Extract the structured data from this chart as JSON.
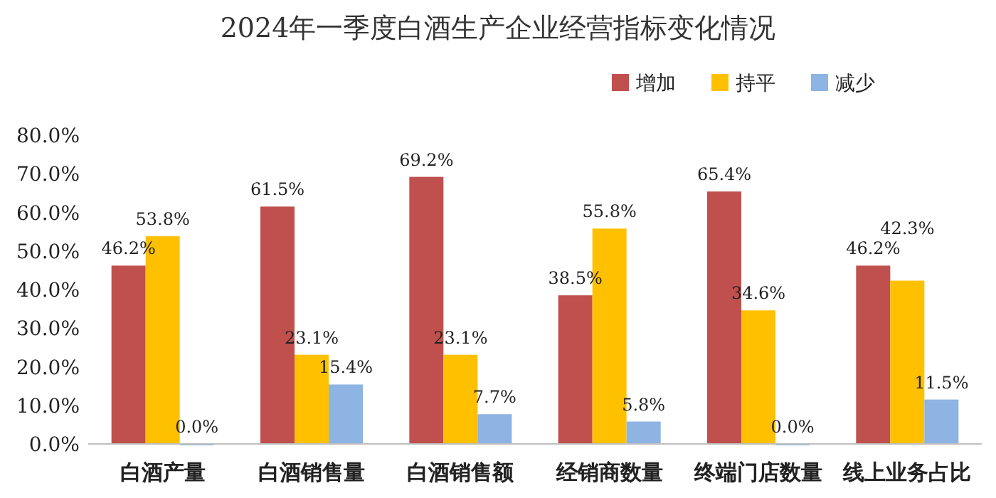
{
  "chart_data": {
    "type": "bar",
    "title": "2024年一季度白酒生产企业经营指标变化情况",
    "categories": [
      "白酒产量",
      "白酒销售量",
      "白酒销售额",
      "经销商数量",
      "终端门店数量",
      "线上业务占比"
    ],
    "series": [
      {
        "name": "增加",
        "color": "#c0504d",
        "values": [
          46.2,
          61.5,
          69.2,
          38.5,
          65.4,
          46.2
        ],
        "value_labels": [
          "46.2%",
          "61.5%",
          "69.2%",
          "38.5%",
          "65.4%",
          "46.2%"
        ]
      },
      {
        "name": "持平",
        "color": "#ffc000",
        "values": [
          53.8,
          23.1,
          23.1,
          55.8,
          34.6,
          42.3
        ],
        "value_labels": [
          "53.8%",
          "23.1%",
          "23.1%",
          "55.8%",
          "34.6%",
          "42.3%"
        ]
      },
      {
        "name": "减少",
        "color": "#8db4e2",
        "values": [
          0.0,
          15.4,
          7.7,
          5.8,
          0.0,
          11.5
        ],
        "value_labels": [
          "0.0%",
          "15.4%",
          "7.7%",
          "5.8%",
          "0.0%",
          "11.5%"
        ]
      }
    ],
    "ylim": [
      0,
      80
    ],
    "yticks": [
      {
        "value": 0,
        "label": "0.0%"
      },
      {
        "value": 10,
        "label": "10.0%"
      },
      {
        "value": 20,
        "label": "20.0%"
      },
      {
        "value": 30,
        "label": "30.0%"
      },
      {
        "value": 40,
        "label": "40.0%"
      },
      {
        "value": 50,
        "label": "50.0%"
      },
      {
        "value": 60,
        "label": "60.0%"
      },
      {
        "value": 70,
        "label": "70.0%"
      },
      {
        "value": 80,
        "label": "80.0%"
      }
    ],
    "grid": false,
    "legend": "top right"
  }
}
